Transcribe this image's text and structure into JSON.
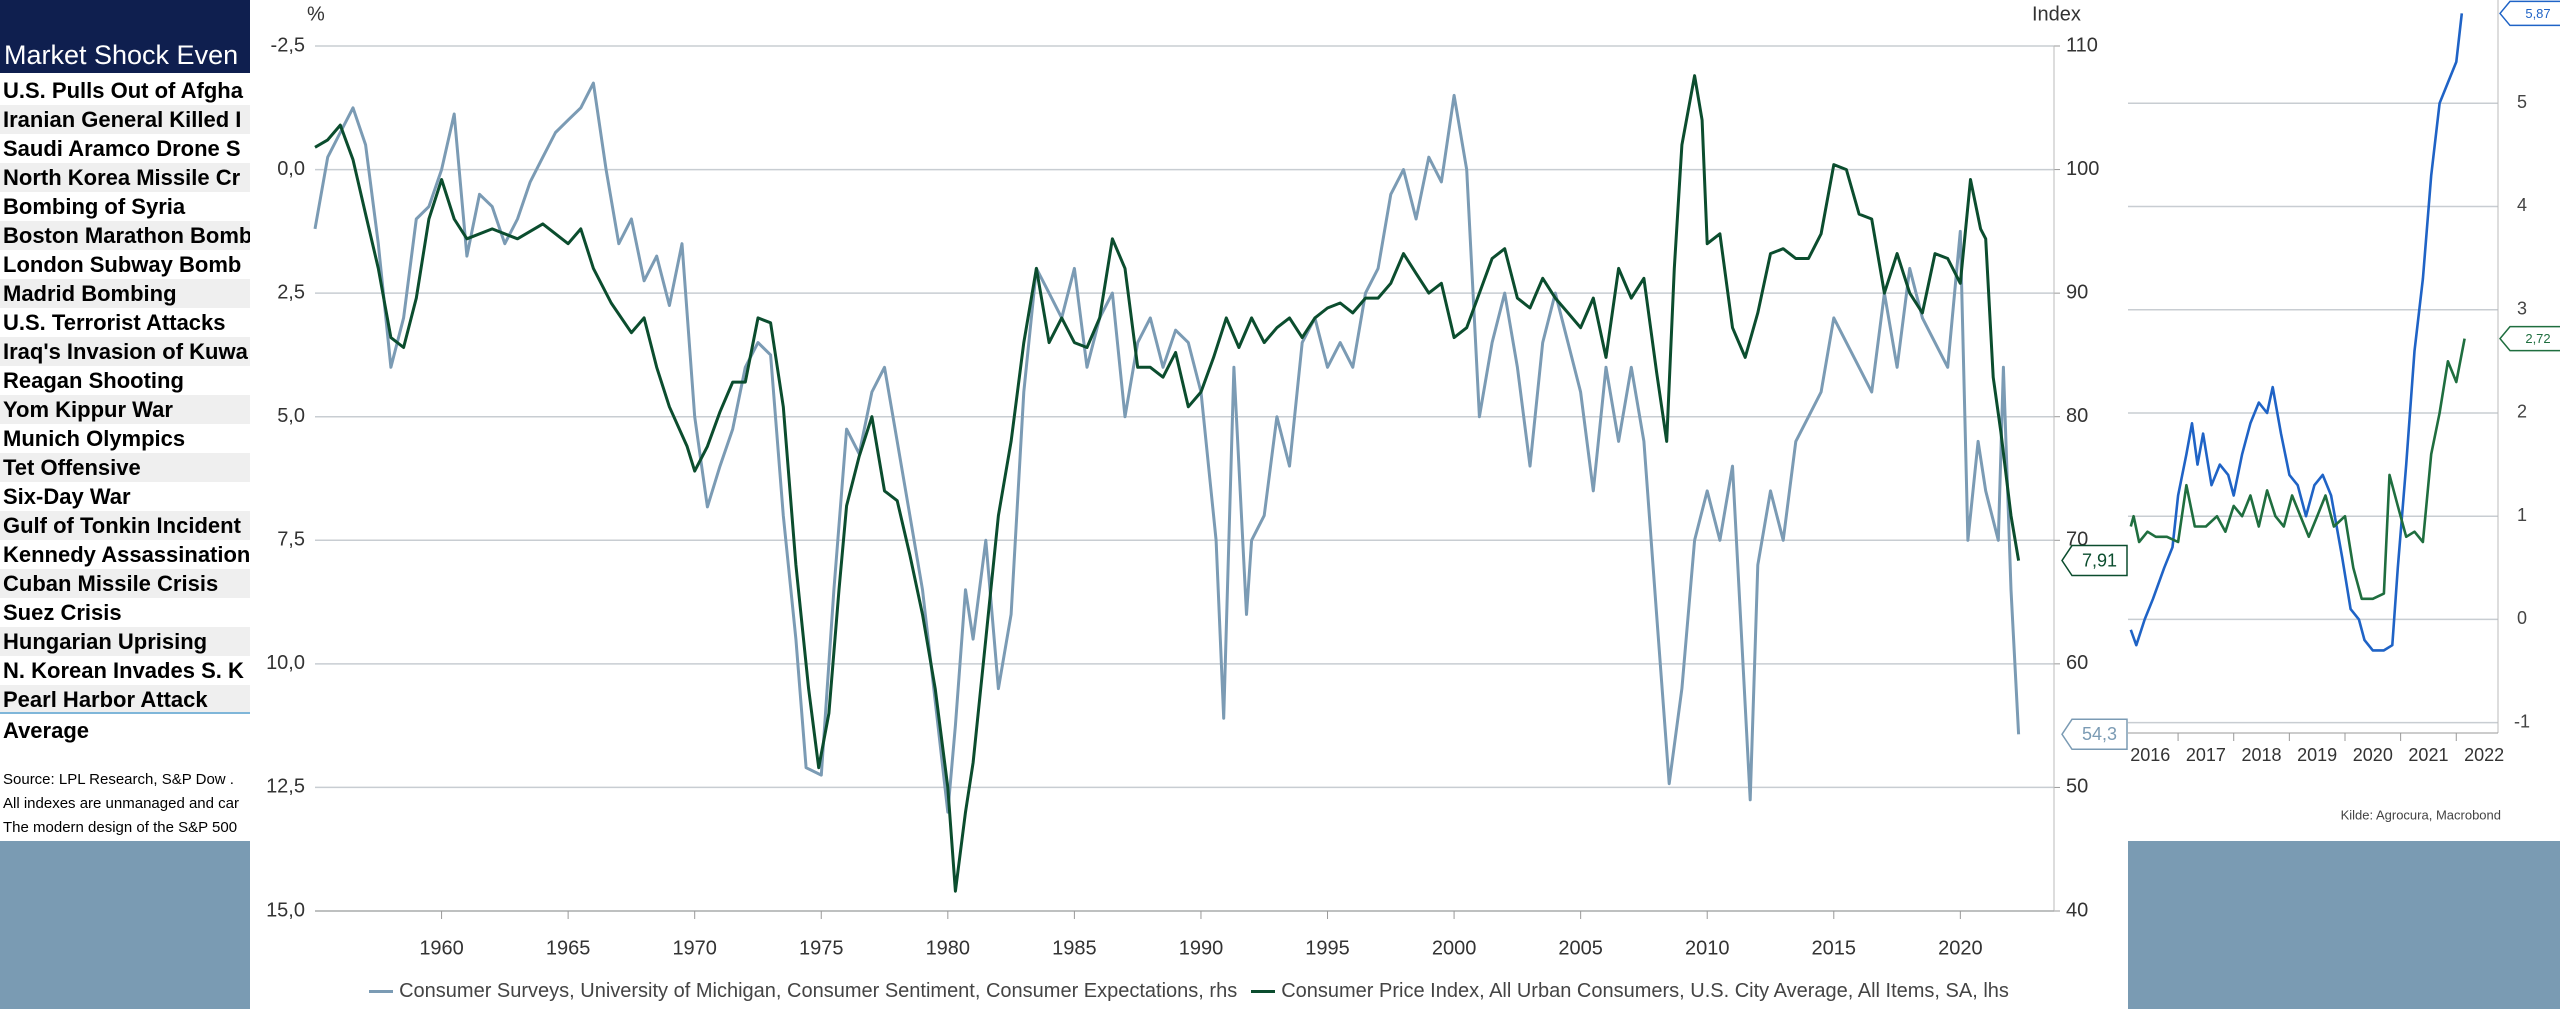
{
  "table": {
    "title": "Market Shock Even",
    "rows": [
      "U.S. Pulls Out of Afgha",
      "Iranian General Killed I",
      "Saudi Aramco Drone S",
      "North Korea Missile Cr",
      "Bombing of Syria",
      "Boston Marathon Bomb",
      "London Subway Bomb",
      "Madrid Bombing",
      "U.S. Terrorist Attacks",
      "Iraq's Invasion of Kuwa",
      "Reagan Shooting",
      "Yom Kippur War",
      "Munich Olympics",
      "Tet Offensive",
      "Six-Day War",
      "Gulf of Tonkin Incident",
      "Kennedy Assassination",
      "Cuban Missile Crisis",
      "Suez Crisis",
      "Hungarian Uprising",
      "N. Korean Invades S. K",
      "Pearl Harbor Attack"
    ],
    "average": "Average",
    "notes": [
      "Source: LPL Research, S&P Dow .",
      "All indexes are unmanaged and car",
      "The modern design of the S&P 500"
    ]
  },
  "chart_data": [
    {
      "type": "line",
      "y_title": "%",
      "y2_title": "Index",
      "grid": true,
      "y_inverted": true,
      "xlim": [
        1955,
        2023.7
      ],
      "xticks": [
        1960,
        1965,
        1970,
        1975,
        1980,
        1985,
        1990,
        1995,
        2000,
        2005,
        2010,
        2015,
        2020
      ],
      "ylim": [
        -2.5,
        15
      ],
      "yticks": [
        {
          "value": -2.5,
          "label": "-2,5"
        },
        {
          "value": 0,
          "label": "0,0"
        },
        {
          "value": 2.5,
          "label": "2,5"
        },
        {
          "value": 5,
          "label": "5,0"
        },
        {
          "value": 7.5,
          "label": "7,5"
        },
        {
          "value": 10,
          "label": "10,0"
        },
        {
          "value": 12.5,
          "label": "12,5"
        },
        {
          "value": 15,
          "label": "15,0"
        }
      ],
      "y2lim": [
        40,
        110
      ],
      "y2ticks": [
        40,
        50,
        60,
        70,
        80,
        90,
        100,
        110
      ],
      "series": [
        {
          "name": "Consumer Surveys, University of Michigan, Consumer Sentiment, Consumer Expectations, rhs",
          "color": "#7b9bb4",
          "axis": "y2",
          "end_label": "54,3",
          "x": [
            1955,
            1955.5,
            1956,
            1956.5,
            1957,
            1957.5,
            1958,
            1958.5,
            1959,
            1959.5,
            1960,
            1960.5,
            1961,
            1961.5,
            1962,
            1962.5,
            1963,
            1963.5,
            1964,
            1964.5,
            1965,
            1965.5,
            1966,
            1966.5,
            1967,
            1967.5,
            1968,
            1968.5,
            1969,
            1969.5,
            1970,
            1970.5,
            1971,
            1971.5,
            1972,
            1972.5,
            1973,
            1973.5,
            1974,
            1974.4,
            1975,
            1975.5,
            1976,
            1976.5,
            1977,
            1977.5,
            1978,
            1978.5,
            1979,
            1979.5,
            1980,
            1980.3,
            1980.7,
            1981,
            1981.5,
            1982,
            1982.5,
            1983,
            1983.5,
            1984,
            1984.5,
            1985,
            1985.5,
            1986,
            1986.5,
            1987,
            1987.5,
            1988,
            1988.5,
            1989,
            1989.5,
            1990,
            1990.6,
            1990.9,
            1991.3,
            1991.8,
            1992,
            1992.5,
            1993,
            1993.5,
            1994,
            1994.5,
            1995,
            1995.5,
            1996,
            1996.5,
            1997,
            1997.5,
            1998,
            1998.5,
            1999,
            1999.5,
            2000,
            2000.5,
            2001,
            2001.5,
            2002,
            2002.5,
            2003,
            2003.5,
            2004,
            2004.5,
            2005,
            2005.5,
            2006,
            2006.5,
            2007,
            2007.5,
            2008,
            2008.5,
            2009,
            2009.5,
            2010,
            2010.5,
            2011,
            2011.7,
            2012,
            2012.5,
            2013,
            2013.5,
            2014,
            2014.5,
            2015,
            2015.5,
            2016,
            2016.5,
            2017,
            2017.5,
            2018,
            2018.5,
            2019,
            2019.5,
            2020,
            2020.3,
            2020.7,
            2021,
            2021.5,
            2021.7,
            2022,
            2022.3
          ],
          "values": [
            95.2,
            101,
            103,
            105,
            102,
            94,
            84,
            88,
            96,
            97,
            100,
            104.5,
            93,
            98,
            97,
            94,
            96,
            99,
            101,
            103,
            104,
            105,
            107,
            100,
            94,
            96,
            91,
            93,
            89,
            94,
            80,
            72.7,
            76,
            79,
            84,
            86,
            85,
            72,
            62,
            51.6,
            51,
            66,
            79,
            77,
            82,
            84,
            78,
            72,
            66,
            57,
            48,
            55,
            66,
            62,
            70,
            58,
            64,
            82,
            92,
            90,
            88,
            92,
            84,
            88,
            90,
            80,
            86,
            88,
            84,
            87,
            86,
            82,
            70,
            55.6,
            84,
            64,
            70,
            72,
            80,
            76,
            86,
            88,
            84,
            86,
            84,
            90,
            92,
            98,
            100,
            96,
            101,
            99,
            106,
            100,
            80,
            86,
            90,
            84,
            76,
            86,
            90,
            86,
            82,
            74,
            84,
            78,
            84,
            78,
            64,
            50.3,
            58,
            70,
            74,
            70,
            76,
            49,
            68,
            74,
            70,
            78,
            80,
            82,
            88,
            86,
            84,
            82,
            90,
            84,
            92,
            88,
            86,
            84,
            95,
            70,
            78,
            74,
            70,
            84,
            66,
            54.3
          ]
        },
        {
          "name": "Consumer Price Index, All Urban Consumers, U.S. City Average, All Items, SA, lhs",
          "color": "#0b4d2e",
          "axis": "y",
          "end_label": "7,91",
          "x": [
            1955,
            1955.5,
            1956,
            1956.5,
            1957,
            1957.5,
            1958,
            1958.5,
            1959,
            1959.5,
            1960,
            1960.5,
            1961,
            1962,
            1963,
            1964,
            1965,
            1965.5,
            1966,
            1966.7,
            1967.5,
            1968,
            1968.5,
            1969,
            1969.7,
            1970,
            1970.5,
            1971,
            1971.5,
            1972,
            1972.5,
            1973,
            1973.5,
            1974,
            1974.5,
            1974.9,
            1975.3,
            1975.7,
            1976,
            1976.5,
            1977,
            1977.5,
            1978,
            1978.5,
            1979,
            1979.5,
            1980,
            1980.3,
            1980.7,
            1981,
            1981.5,
            1982,
            1982.5,
            1983,
            1983.5,
            1984,
            1984.5,
            1985,
            1985.5,
            1986,
            1986.5,
            1987,
            1987.5,
            1988,
            1988.5,
            1989,
            1989.5,
            1990,
            1990.5,
            1991,
            1991.5,
            1992,
            1992.5,
            1993,
            1993.5,
            1994,
            1994.5,
            1995,
            1995.5,
            1996,
            1996.5,
            1997,
            1997.5,
            1998,
            1998.5,
            1999,
            1999.5,
            2000,
            2000.5,
            2001,
            2001.5,
            2002,
            2002.5,
            2003,
            2003.5,
            2004,
            2004.5,
            2005,
            2005.5,
            2006,
            2006.5,
            2007,
            2007.5,
            2008,
            2008.4,
            2008.7,
            2009,
            2009.5,
            2009.8,
            2010,
            2010.5,
            2011,
            2011.5,
            2012,
            2012.5,
            2013,
            2013.5,
            2014,
            2014.5,
            2015,
            2015.5,
            2016,
            2016.5,
            2017,
            2017.5,
            2018,
            2018.5,
            2019,
            2019.5,
            2020,
            2020.4,
            2020.8,
            2021,
            2021.3,
            2021.6,
            2022,
            2022.3
          ],
          "values": [
            -0.45,
            -0.6,
            -0.9,
            -0.2,
            0.9,
            2.0,
            3.4,
            3.6,
            2.6,
            1.0,
            0.2,
            1.0,
            1.4,
            1.2,
            1.4,
            1.1,
            1.5,
            1.2,
            2.0,
            2.7,
            3.3,
            3.0,
            4.0,
            4.8,
            5.6,
            6.1,
            5.6,
            4.9,
            4.3,
            4.3,
            3.0,
            3.1,
            4.8,
            8.0,
            10.5,
            12.1,
            11.0,
            8.5,
            6.8,
            5.8,
            5.0,
            6.5,
            6.7,
            7.8,
            9.0,
            10.5,
            12.5,
            14.6,
            13.0,
            12.0,
            9.5,
            7.0,
            5.5,
            3.5,
            2.0,
            3.5,
            3.0,
            3.5,
            3.6,
            3.0,
            1.4,
            2.0,
            4.0,
            4.0,
            4.2,
            3.7,
            4.8,
            4.5,
            3.8,
            3.0,
            3.6,
            3.0,
            3.5,
            3.2,
            3.0,
            3.4,
            3.0,
            2.8,
            2.7,
            2.9,
            2.6,
            2.6,
            2.3,
            1.7,
            2.1,
            2.5,
            2.3,
            3.4,
            3.2,
            2.5,
            1.8,
            1.6,
            2.6,
            2.8,
            2.2,
            2.6,
            2.9,
            3.2,
            2.6,
            3.8,
            2.0,
            2.6,
            2.2,
            4.1,
            5.5,
            2.0,
            -0.5,
            -1.9,
            -1.0,
            1.5,
            1.3,
            3.2,
            3.8,
            2.9,
            1.7,
            1.6,
            1.8,
            1.8,
            1.3,
            -0.1,
            0.0,
            0.9,
            1.0,
            2.5,
            1.7,
            2.5,
            2.9,
            1.7,
            1.8,
            2.3,
            0.2,
            1.2,
            1.4,
            4.2,
            5.3,
            7.0,
            7.91
          ]
        }
      ]
    },
    {
      "type": "line",
      "source": "Kilde: Agrocura, Macrobond",
      "grid": true,
      "xlim": [
        2016.1,
        2022.75
      ],
      "xticks": [
        2016,
        2017,
        2018,
        2019,
        2020,
        2021,
        2022
      ],
      "ylim": [
        -1.1,
        6
      ],
      "yticks": [
        -1,
        0,
        1,
        2,
        3,
        4,
        5
      ],
      "series": [
        {
          "color": "#1f63c6",
          "end_label": "5,87",
          "x": [
            2016.15,
            2016.25,
            2016.4,
            2016.55,
            2016.75,
            2016.9,
            2017.0,
            2017.15,
            2017.25,
            2017.35,
            2017.45,
            2017.6,
            2017.75,
            2017.9,
            2018.0,
            2018.15,
            2018.3,
            2018.45,
            2018.6,
            2018.7,
            2018.85,
            2019.0,
            2019.15,
            2019.3,
            2019.45,
            2019.6,
            2019.75,
            2019.95,
            2020.1,
            2020.25,
            2020.35,
            2020.5,
            2020.7,
            2020.85,
            2020.95,
            2021.1,
            2021.25,
            2021.4,
            2021.55,
            2021.7,
            2021.85,
            2022.0,
            2022.1
          ],
          "values": [
            -0.1,
            -0.25,
            0.0,
            0.2,
            0.5,
            0.7,
            1.2,
            1.6,
            1.9,
            1.5,
            1.8,
            1.3,
            1.5,
            1.4,
            1.2,
            1.6,
            1.9,
            2.1,
            2.0,
            2.25,
            1.8,
            1.4,
            1.3,
            1.0,
            1.3,
            1.4,
            1.2,
            0.6,
            0.1,
            0.0,
            -0.2,
            -0.3,
            -0.3,
            -0.25,
            0.5,
            1.5,
            2.6,
            3.3,
            4.3,
            5.0,
            5.2,
            5.4,
            5.87
          ]
        },
        {
          "color": "#1f6e3f",
          "end_label": "2,72",
          "x": [
            2016.15,
            2016.2,
            2016.3,
            2016.45,
            2016.6,
            2016.8,
            2017.0,
            2017.15,
            2017.3,
            2017.5,
            2017.7,
            2017.85,
            2018.0,
            2018.15,
            2018.3,
            2018.45,
            2018.6,
            2018.75,
            2018.9,
            2019.05,
            2019.2,
            2019.35,
            2019.5,
            2019.65,
            2019.8,
            2020.0,
            2020.15,
            2020.3,
            2020.5,
            2020.7,
            2020.8,
            2020.95,
            2021.1,
            2021.25,
            2021.4,
            2021.55,
            2021.7,
            2021.85,
            2022.0,
            2022.15
          ],
          "values": [
            0.9,
            1.0,
            0.75,
            0.85,
            0.8,
            0.8,
            0.75,
            1.3,
            0.9,
            0.9,
            1.0,
            0.85,
            1.1,
            1.0,
            1.2,
            0.9,
            1.25,
            1.0,
            0.9,
            1.2,
            1.0,
            0.8,
            1.0,
            1.2,
            0.9,
            1.0,
            0.5,
            0.2,
            0.2,
            0.25,
            1.4,
            1.1,
            0.8,
            0.85,
            0.75,
            1.6,
            2.0,
            2.5,
            2.3,
            2.72
          ]
        }
      ]
    }
  ]
}
